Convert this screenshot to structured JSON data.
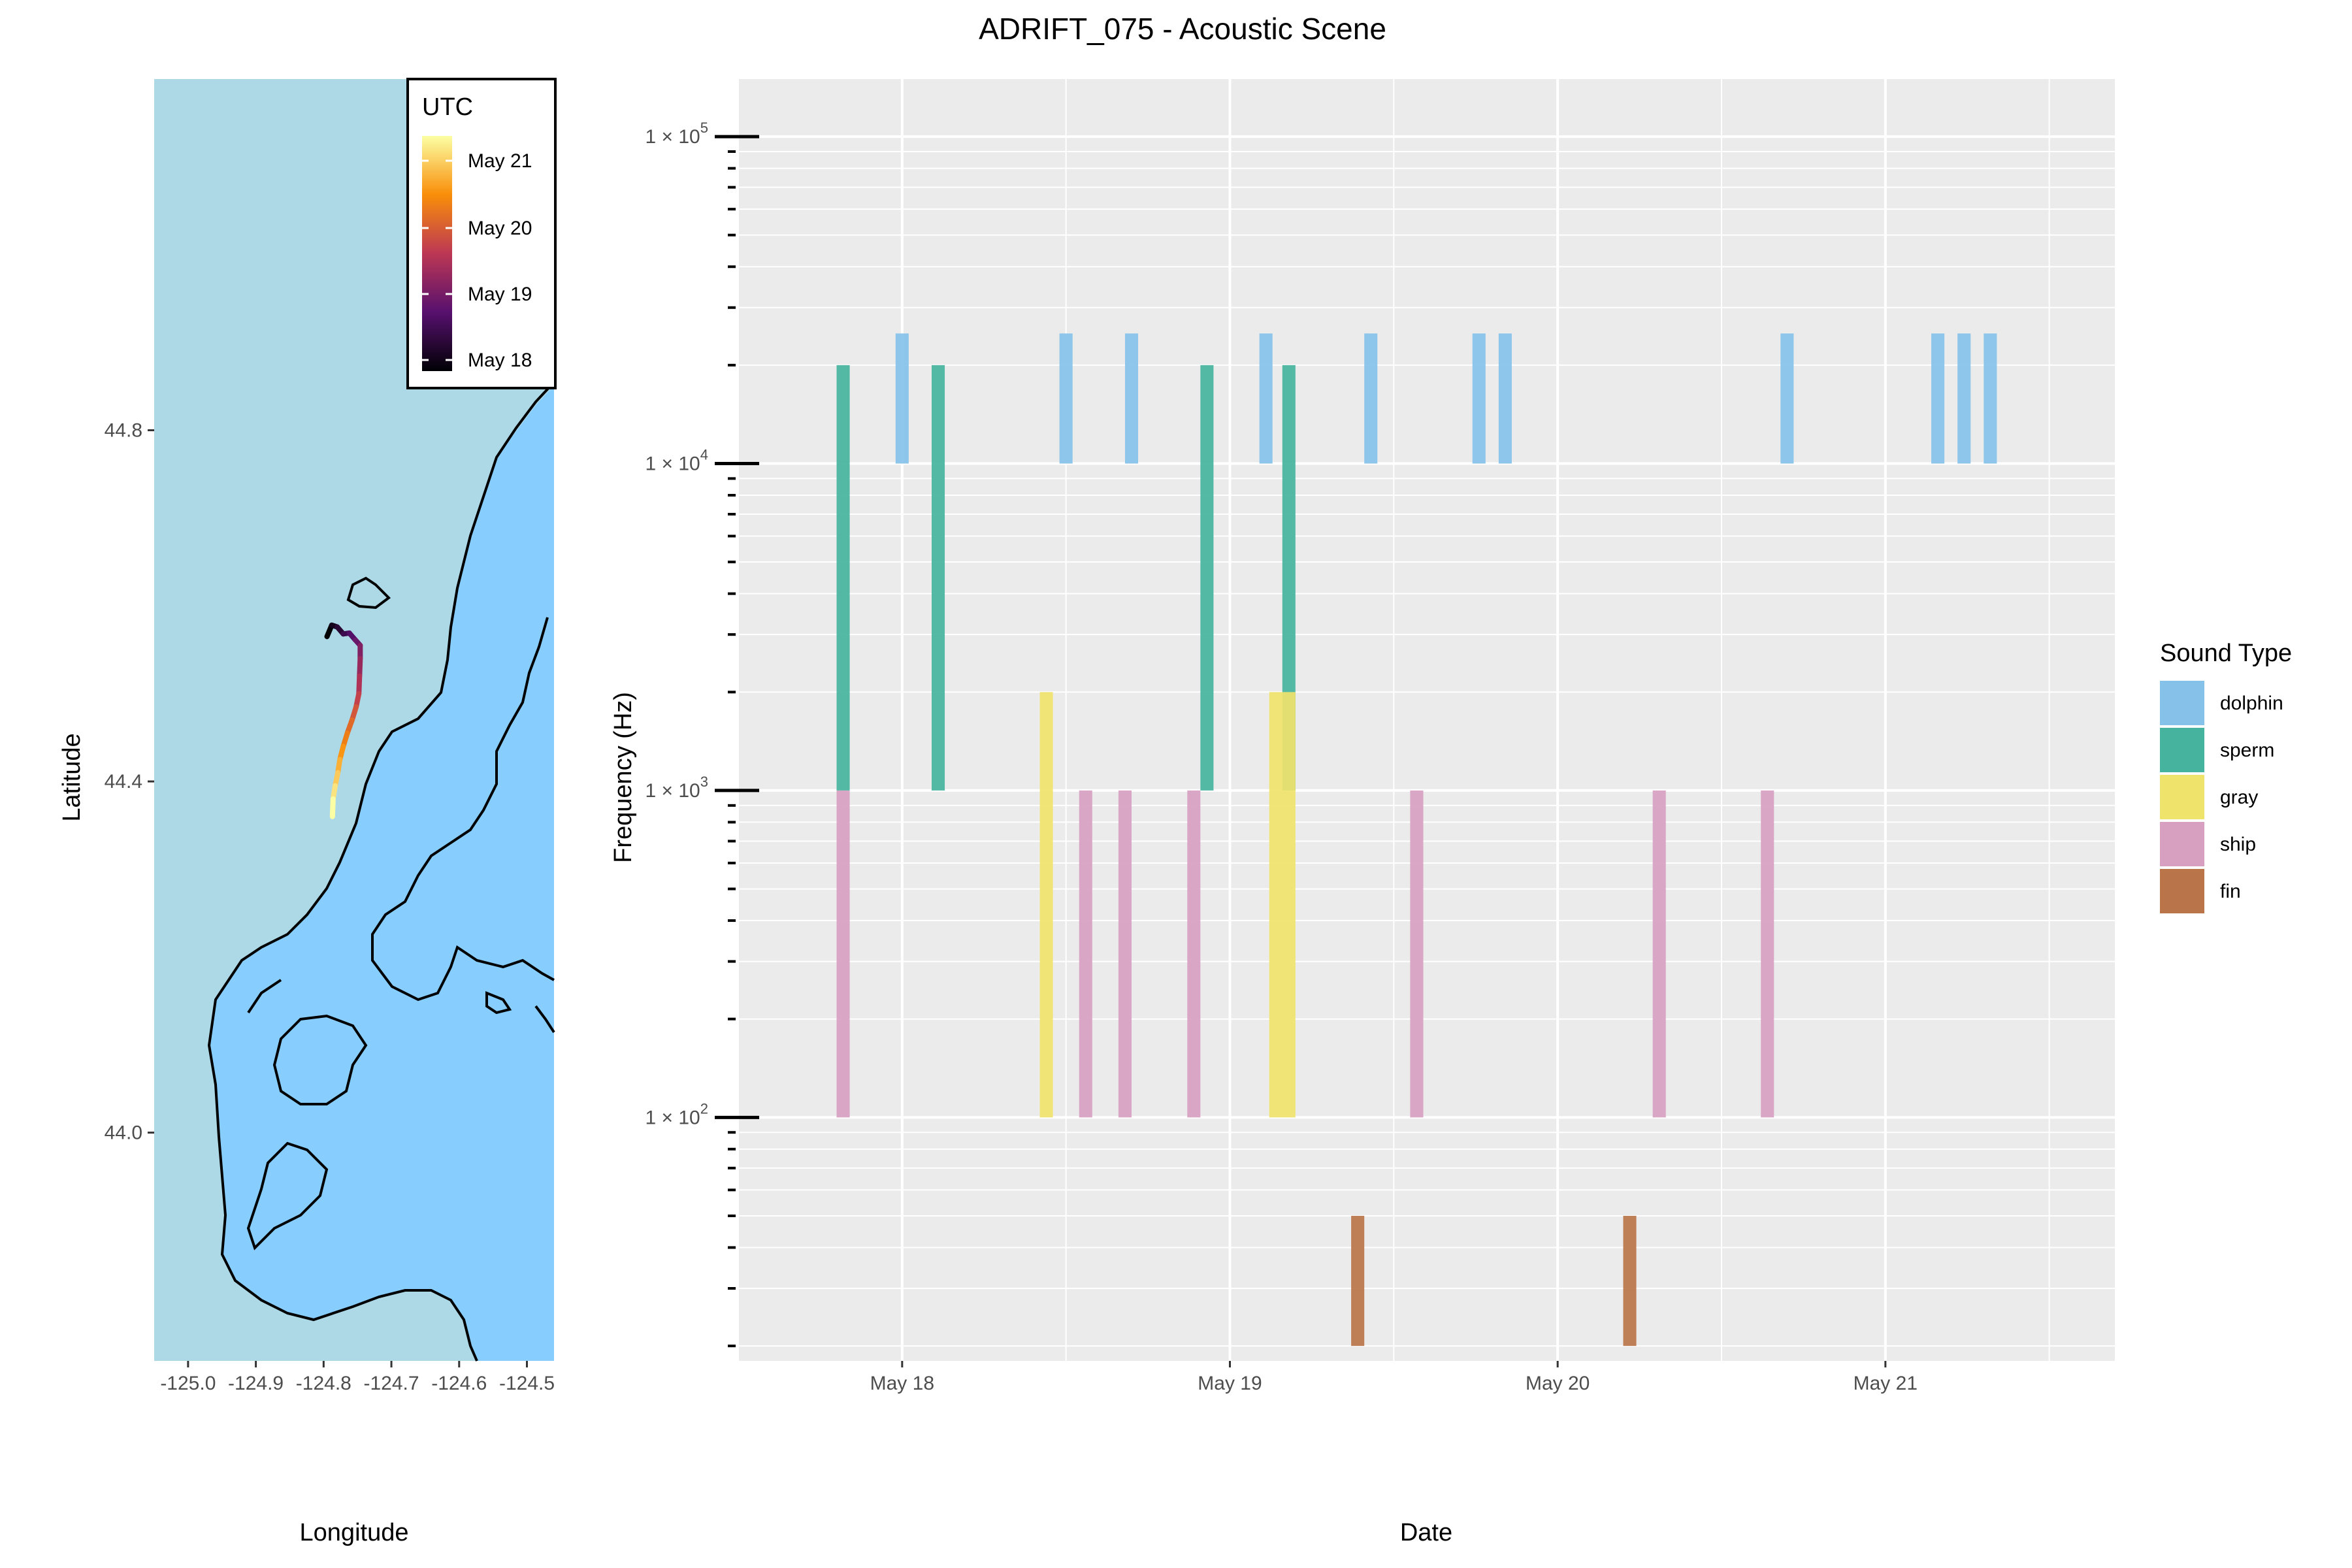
{
  "title": "ADRIFT_075 - Acoustic Scene",
  "map": {
    "xlabel": "Longitude",
    "ylabel": "Latitude",
    "x_ticks": [
      "-125.0",
      "-124.9",
      "-124.8",
      "-124.7",
      "-124.6",
      "-124.5"
    ],
    "x_tick_values": [
      -125.0,
      -124.9,
      -124.8,
      -124.7,
      -124.6,
      -124.5
    ],
    "y_ticks": [
      "44.8",
      "44.4",
      "44.0"
    ],
    "y_tick_values": [
      44.8,
      44.4,
      44.0
    ],
    "xlim": [
      -125.05,
      -124.46
    ],
    "ylim": [
      43.74,
      45.2
    ],
    "land_color": "#add8e6",
    "sea_color": "#87ceff",
    "legend": {
      "title": "UTC",
      "labels": [
        "May 21",
        "May 20",
        "May 19",
        "May 18"
      ],
      "colors": [
        "#fcffa4",
        "#f98e09",
        "#bc3754",
        "#57106e",
        "#000004"
      ]
    },
    "track": {
      "lon": [
        -124.795,
        -124.788,
        -124.78,
        -124.771,
        -124.762,
        -124.753,
        -124.746,
        -124.746,
        -124.747,
        -124.748,
        -124.752,
        -124.758,
        -124.765,
        -124.771,
        -124.776,
        -124.779,
        -124.783,
        -124.786,
        -124.787
      ],
      "lat": [
        44.565,
        44.578,
        44.576,
        44.568,
        44.569,
        44.561,
        44.555,
        44.54,
        44.52,
        44.5,
        44.485,
        44.47,
        44.455,
        44.44,
        44.425,
        44.41,
        44.395,
        44.38,
        44.36
      ]
    }
  },
  "chart_data": {
    "type": "bar",
    "title": "ADRIFT_075 - Acoustic Scene",
    "xlabel": "Date",
    "ylabel": "Frequency (Hz)",
    "y_scale": "log10",
    "ylim": [
      18,
      150000
    ],
    "xlim": [
      17.5,
      21.7
    ],
    "x_ticks": [
      "May 18",
      "May 19",
      "May 20",
      "May 21"
    ],
    "x_tick_values": [
      18,
      19,
      20,
      21
    ],
    "y_ticks": [
      "1 × 10",
      "1 × 10",
      "1 × 10",
      "1 × 10"
    ],
    "y_tick_exponents": [
      "2",
      "3",
      "4",
      "5"
    ],
    "y_tick_values": [
      100,
      1000,
      10000,
      100000
    ],
    "legend_title": "Sound Type",
    "legend_position": "right",
    "series": [
      {
        "name": "dolphin",
        "color": "#85c1e9",
        "freq_range": [
          10000,
          25000
        ],
        "starts": [
          17.98,
          18.48,
          18.68,
          19.09,
          19.41,
          19.74,
          19.82,
          20.68,
          21.14,
          21.22,
          21.3
        ]
      },
      {
        "name": "sperm",
        "color": "#45b39d",
        "freq_range": [
          1000,
          20000
        ],
        "starts": [
          17.8,
          18.09,
          18.91,
          19.16
        ]
      },
      {
        "name": "gray",
        "color": "#f0e36c",
        "freq_range": [
          100,
          2000
        ],
        "starts": [
          18.42,
          19.12
        ]
      },
      {
        "name": "ship",
        "color": "#d7a0c1",
        "freq_range": [
          100,
          1000
        ],
        "starts": [
          17.8,
          18.54,
          18.66,
          18.87,
          19.55,
          20.29,
          20.62
        ]
      },
      {
        "name": "fin",
        "color": "#ba7449",
        "freq_range": [
          20,
          50
        ],
        "starts": [
          19.37,
          20.2
        ]
      }
    ],
    "bar_width_days": 0.04,
    "extra_durations": [
      {
        "series": "gray",
        "index": 1,
        "width_days": 0.08
      }
    ]
  }
}
